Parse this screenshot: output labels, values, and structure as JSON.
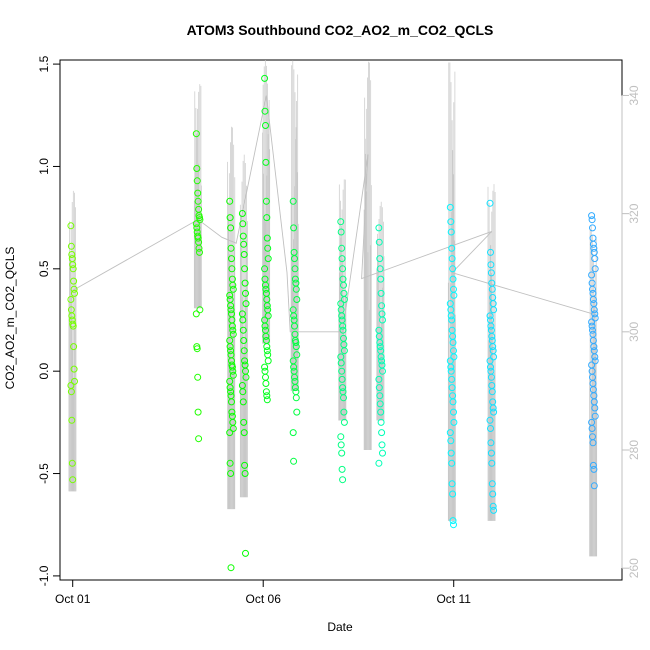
{
  "chart_data": {
    "type": "scatter",
    "title": "ATOM3 Southbound CO2_AO2_m_CO2_QCLS",
    "xlabel": "Date",
    "ylabel": "CO2_AO2_m_CO2_QCLS",
    "x_ticks": [
      "Oct 01",
      "Oct 06",
      "Oct 11"
    ],
    "y_ticks": [
      "-1.0",
      "-0.5",
      "0.0",
      "0.5",
      "1.0",
      "1.5"
    ],
    "y2_ticks": [
      "260",
      "280",
      "300",
      "320",
      "340"
    ],
    "xlim": [
      "2017-09-30T16:00",
      "2017-10-15T10:00"
    ],
    "ylim": [
      -1.02,
      1.52
    ],
    "y2lim": [
      258,
      346
    ],
    "grid": false,
    "legend": "none",
    "series": [
      {
        "values": [
          {
            "date": "2017-10-01",
            "points": [
              0.71,
              0.61,
              0.57,
              0.55,
              0.52,
              0.5,
              0.44,
              0.4,
              0.38,
              0.35,
              0.3,
              0.27,
              0.25,
              0.23,
              0.22,
              0.12,
              0.01,
              -0.05,
              -0.07,
              -0.1,
              -0.24,
              -0.45,
              -0.53
            ]
          },
          {
            "date": "2017-10-04T07:00",
            "points": [
              1.16,
              0.99,
              0.93,
              0.87,
              0.83,
              0.79,
              0.76,
              0.75,
              0.74,
              0.72,
              0.7,
              0.68,
              0.66,
              0.65,
              0.63,
              0.6,
              0.58,
              0.3,
              0.28,
              0.12,
              0.11,
              -0.03,
              -0.2,
              -0.33
            ]
          },
          {
            "date": "2017-10-05T04:00",
            "points": [
              0.83,
              0.75,
              0.7,
              0.6,
              0.55,
              0.5,
              0.45,
              0.42,
              0.4,
              0.37,
              0.35,
              0.32,
              0.3,
              0.28,
              0.25,
              0.22,
              0.2,
              0.18,
              0.15,
              0.12,
              0.1,
              0.08,
              0.05,
              0.03,
              0.02,
              0.0,
              -0.02,
              -0.05,
              -0.08,
              -0.1,
              -0.12,
              -0.15,
              -0.2,
              -0.22,
              -0.25,
              -0.28,
              -0.3,
              -0.45,
              -0.5,
              -0.96
            ]
          },
          {
            "date": "2017-10-05T12:00",
            "points": [
              0.77,
              0.72,
              0.66,
              0.62,
              0.57,
              0.5,
              0.43,
              0.38,
              0.33,
              0.28,
              0.25,
              0.2,
              0.15,
              0.1,
              0.05,
              0.03,
              0.0,
              -0.03,
              -0.07,
              -0.1,
              -0.15,
              -0.25,
              -0.3,
              -0.46,
              -0.5,
              -0.89
            ]
          },
          {
            "date": "2017-10-06T02:00",
            "points": [
              1.43,
              1.27,
              1.2,
              1.02,
              0.83,
              0.75,
              0.65,
              0.6,
              0.55,
              0.5,
              0.45,
              0.42,
              0.4,
              0.38,
              0.35,
              0.32,
              0.3,
              0.27,
              0.25,
              0.22,
              0.2,
              0.17,
              0.15,
              0.12,
              0.1,
              0.08,
              0.05,
              0.02,
              0.0,
              -0.03,
              -0.06,
              -0.1,
              -0.12,
              -0.14
            ]
          },
          {
            "date": "2017-10-06T20:00",
            "points": [
              0.83,
              0.7,
              0.58,
              0.55,
              0.5,
              0.45,
              0.43,
              0.4,
              0.35,
              0.3,
              0.27,
              0.25,
              0.22,
              0.18,
              0.15,
              0.14,
              0.12,
              0.08,
              0.05,
              0.02,
              0.0,
              -0.03,
              -0.05,
              -0.08,
              -0.1,
              -0.13,
              -0.2,
              -0.3,
              -0.44
            ]
          },
          {
            "date": "2017-10-08T02:00",
            "points": [
              0.73,
              0.68,
              0.6,
              0.55,
              0.5,
              0.45,
              0.42,
              0.38,
              0.35,
              0.33,
              0.3,
              0.27,
              0.25,
              0.22,
              0.2,
              0.16,
              0.13,
              0.1,
              0.07,
              0.04,
              0.0,
              -0.04,
              -0.08,
              -0.1,
              -0.13,
              -0.2,
              -0.25,
              -0.32,
              -0.36,
              -0.4,
              -0.48,
              -0.53
            ]
          },
          {
            "date": "2017-10-09T02:00",
            "points": [
              0.7,
              0.63,
              0.55,
              0.5,
              0.45,
              0.38,
              0.32,
              0.28,
              0.25,
              0.2,
              0.17,
              0.14,
              0.12,
              0.1,
              0.07,
              0.05,
              0.03,
              0.0,
              -0.04,
              -0.08,
              -0.12,
              -0.16,
              -0.2,
              -0.25,
              -0.3,
              -0.36,
              -0.4,
              -0.45
            ]
          },
          {
            "date": "2017-10-10T23:00",
            "points": [
              0.8,
              0.73,
              0.68,
              0.6,
              0.55,
              0.5,
              0.45,
              0.4,
              0.37,
              0.33,
              0.3,
              0.27,
              0.25,
              0.2,
              0.17,
              0.14,
              0.1,
              0.07,
              0.05,
              0.02,
              0.0,
              -0.04,
              -0.08,
              -0.12,
              -0.15,
              -0.2,
              -0.25,
              -0.3,
              -0.34,
              -0.4,
              -0.45,
              -0.55,
              -0.6,
              -0.73,
              -0.75
            ]
          },
          {
            "date": "2017-10-12T00:00",
            "points": [
              0.82,
              0.58,
              0.52,
              0.48,
              0.43,
              0.4,
              0.36,
              0.33,
              0.3,
              0.27,
              0.25,
              0.22,
              0.2,
              0.17,
              0.15,
              0.12,
              0.1,
              0.07,
              0.05,
              0.02,
              0.0,
              -0.03,
              -0.07,
              -0.1,
              -0.15,
              -0.18,
              -0.2,
              -0.24,
              -0.28,
              -0.35,
              -0.4,
              -0.45,
              -0.55,
              -0.6,
              -0.66,
              -0.68
            ]
          },
          {
            "date": "2017-10-14T16:00",
            "points": [
              0.76,
              0.74,
              0.7,
              0.65,
              0.62,
              0.6,
              0.58,
              0.55,
              0.5,
              0.47,
              0.43,
              0.4,
              0.38,
              0.35,
              0.33,
              0.3,
              0.28,
              0.26,
              0.24,
              0.22,
              0.2,
              0.18,
              0.15,
              0.12,
              0.1,
              0.07,
              0.05,
              0.03,
              0.0,
              -0.03,
              -0.06,
              -0.09,
              -0.12,
              -0.15,
              -0.18,
              -0.22,
              -0.25,
              -0.28,
              -0.32,
              -0.35,
              -0.46,
              -0.48,
              -0.56
            ]
          }
        ]
      }
    ],
    "background_trace": {
      "axis": "right",
      "color": "#bdbdbd",
      "spikes": [
        {
          "date": "2017-10-01",
          "lo": 273,
          "hi": 324
        },
        {
          "date": "2017-10-04T07:00",
          "lo": 304,
          "hi": 342
        },
        {
          "date": "2017-10-05T04:00",
          "lo": 270,
          "hi": 335
        },
        {
          "date": "2017-10-05T12:00",
          "lo": 272,
          "hi": 330
        },
        {
          "date": "2017-10-06T02:00",
          "lo": 298,
          "hi": 346
        },
        {
          "date": "2017-10-06T20:00",
          "lo": 290,
          "hi": 346
        },
        {
          "date": "2017-10-08T02:00",
          "lo": 285,
          "hi": 326
        },
        {
          "date": "2017-10-08T18:00",
          "lo": 280,
          "hi": 346
        },
        {
          "date": "2017-10-09T02:00",
          "lo": 285,
          "hi": 322
        },
        {
          "date": "2017-10-10T23:00",
          "lo": 268,
          "hi": 346
        },
        {
          "date": "2017-10-12T00:00",
          "lo": 268,
          "hi": 325
        },
        {
          "date": "2017-10-14T16:00",
          "lo": 262,
          "hi": 318
        }
      ],
      "path": [
        {
          "date": "2017-10-01",
          "value": 307
        },
        {
          "date": "2017-10-04T07:00",
          "value": 319
        },
        {
          "date": "2017-10-04T22:00",
          "value": 316
        },
        {
          "date": "2017-10-05T07:00",
          "value": 315
        },
        {
          "date": "2017-10-06T02:00",
          "value": 340
        },
        {
          "date": "2017-10-06T15:00",
          "value": 310
        },
        {
          "date": "2017-10-06T17:00",
          "value": 300
        },
        {
          "date": "2017-10-08T02:00",
          "value": 300
        },
        {
          "date": "2017-10-08T18:00",
          "value": 330
        },
        {
          "date": "2017-10-08T14:00",
          "value": 309
        },
        {
          "date": "2017-10-12T00:00",
          "value": 317
        },
        {
          "date": "2017-10-10T23:00",
          "value": 310
        },
        {
          "date": "2017-10-14T16:00",
          "value": 303
        }
      ]
    },
    "colors": {
      "gradient": [
        "#7fff00",
        "#00ff00",
        "#00ffff",
        "#3c9cff"
      ],
      "spike": "#c8c8c8",
      "path": "#c0c0c0",
      "axis": "#000000",
      "right_axis": "#c0c0c0"
    }
  }
}
